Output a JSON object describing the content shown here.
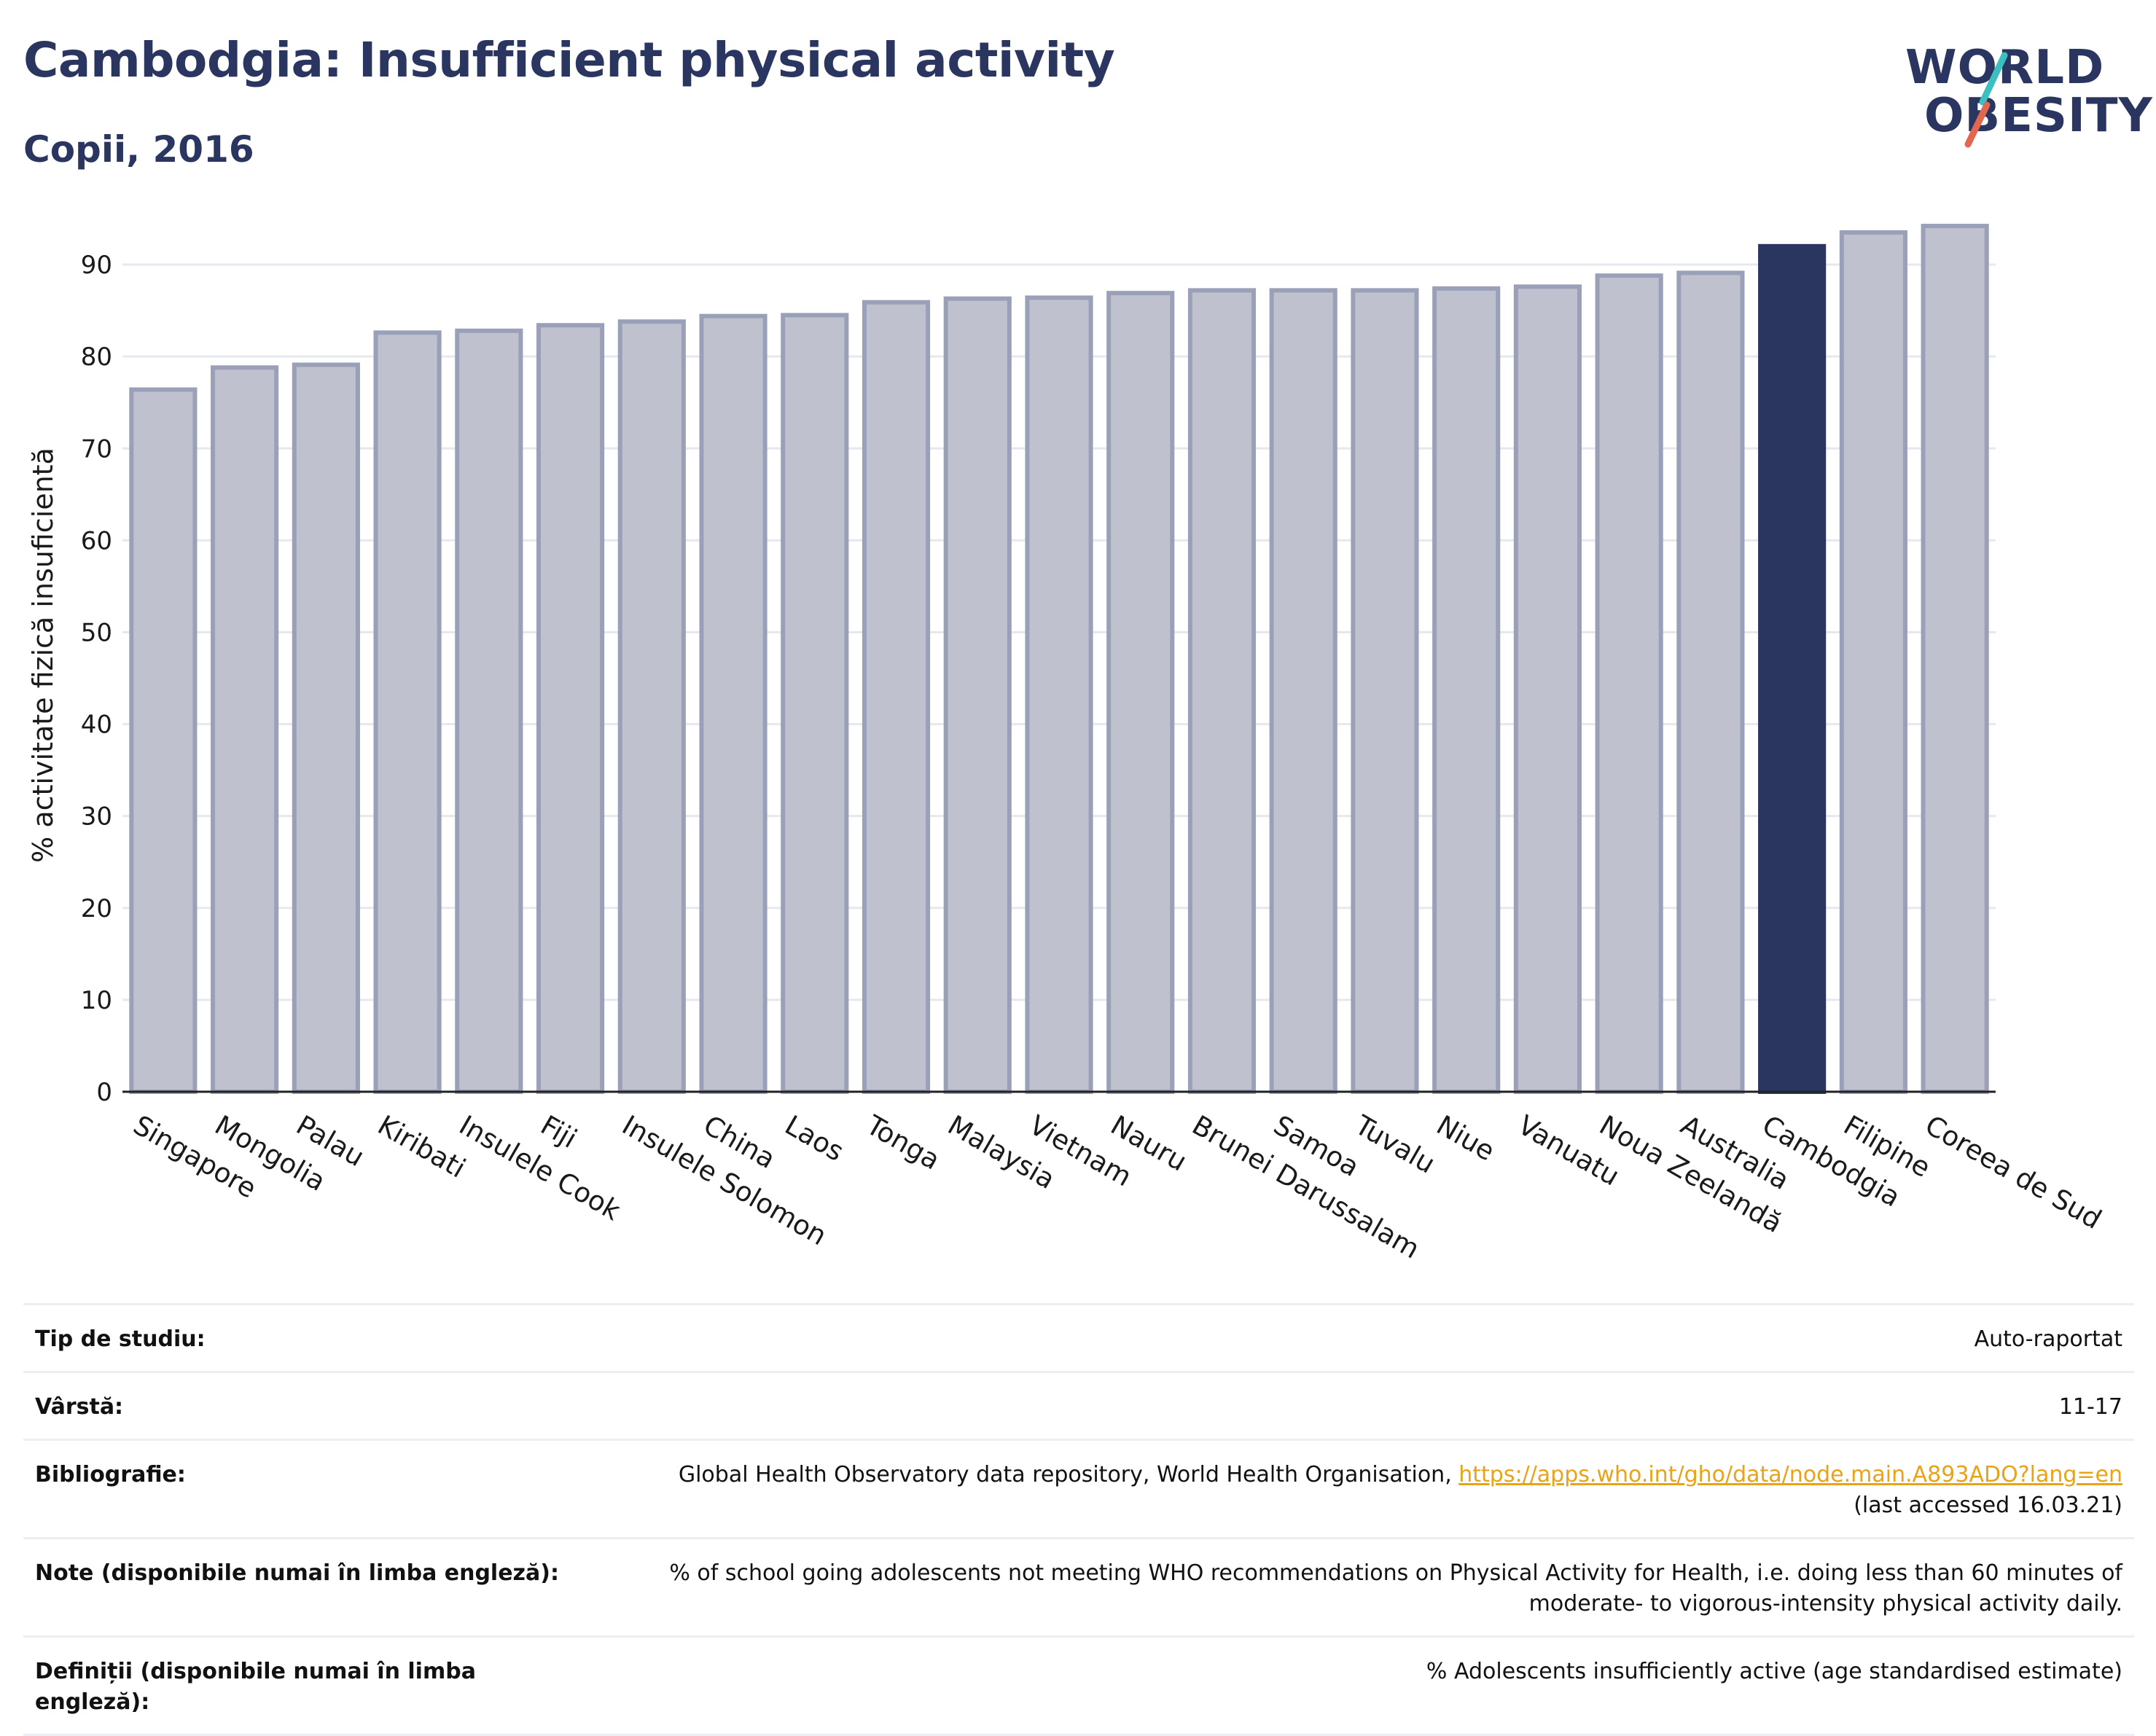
{
  "header": {
    "title": "Cambodgia: Insufficient physical activity",
    "subtitle": "Copii, 2016"
  },
  "logo": {
    "line1": "WORLD",
    "line2": "OBESITY",
    "colors": {
      "text": "#2a3560",
      "slash_top": "#3cbfc0",
      "slash_bottom": "#e2674f"
    }
  },
  "colors": {
    "bar": "#bfc2ce",
    "bar_border": "#9aa0b8",
    "highlight": "#2a3560",
    "grid": "#e6e8ef",
    "link": "#e8a317"
  },
  "chart_data": {
    "type": "bar",
    "title": "Cambodgia: Insufficient physical activity",
    "subtitle": "Copii, 2016",
    "xlabel": "",
    "ylabel": "% activitate fizică insuficientă",
    "ylim": [
      0,
      95
    ],
    "yticks": [
      0,
      10,
      20,
      30,
      40,
      50,
      60,
      70,
      80,
      90
    ],
    "grid": true,
    "highlight": "Cambodgia",
    "categories": [
      "Singapore",
      "Mongolia",
      "Palau",
      "Kiribati",
      "Insulele Cook",
      "Fiji",
      "Insulele Solomon",
      "China",
      "Laos",
      "Tonga",
      "Malaysia",
      "Vietnam",
      "Nauru",
      "Brunei Darussalam",
      "Samoa",
      "Tuvalu",
      "Niue",
      "Vanuatu",
      "Noua Zeelandă",
      "Australia",
      "Cambodgia",
      "Filipine",
      "Coreea de Sud"
    ],
    "values": [
      76.4,
      78.8,
      79.1,
      82.6,
      82.8,
      83.4,
      83.8,
      84.4,
      84.5,
      85.9,
      86.3,
      86.4,
      86.9,
      87.2,
      87.2,
      87.2,
      87.4,
      87.6,
      88.8,
      89.1,
      92.0,
      93.5,
      94.2
    ]
  },
  "info": {
    "rows": [
      {
        "label": "Tip de studiu:",
        "value": "Auto-raportat"
      },
      {
        "label": "Vârstă:",
        "value": "11-17"
      },
      {
        "label": "Bibliografie:",
        "value": "Global Health Observatory data repository, World Health Organisation, ",
        "link": "https://apps.who.int/gho/data/node.main.A893ADO?lang=en",
        "value2": "(last accessed 16.03.21)"
      },
      {
        "label": "Note (disponibile numai în limba engleză):",
        "value": "% of school going adolescents not meeting WHO recommendations on Physical Activity for Health, i.e. doing less than 60 minutes of",
        "value2": "moderate- to vigorous-intensity physical activity daily."
      },
      {
        "label": "Definiții (disponibile numai în limba engleză):",
        "value": "% Adolescents insufficiently active (age standardised estimate)"
      }
    ]
  }
}
